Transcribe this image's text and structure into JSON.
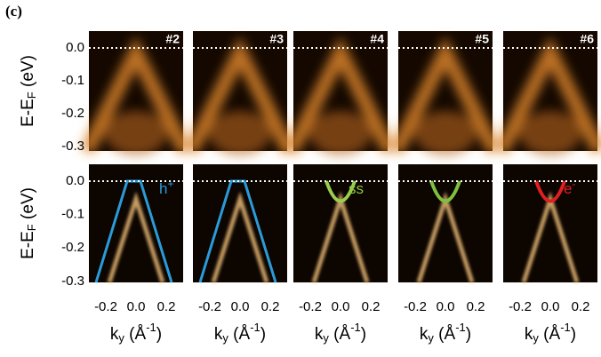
{
  "figure": {
    "panel_label": "(c)",
    "panels": [
      "#2",
      "#3",
      "#4",
      "#5",
      "#6"
    ],
    "y_label": {
      "main": "E-E",
      "sub": "F",
      "unit": " (eV)"
    },
    "y_ticks": [
      "0.0",
      "-0.1",
      "-0.2",
      "-0.3"
    ],
    "x_ticks": [
      "-0.2",
      "0.0",
      "0.2"
    ],
    "x_label": {
      "main": "k",
      "sub": "y",
      "unit": " (Å",
      "sup": "-1",
      "close": ")"
    },
    "annotations": [
      {
        "text": "h",
        "sup": "+"
      },
      {
        "text": "ss"
      },
      {
        "text": "e",
        "sup": "-"
      }
    ]
  }
}
